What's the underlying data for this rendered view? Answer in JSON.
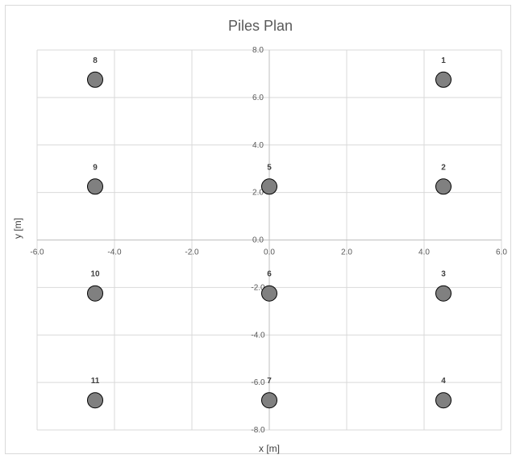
{
  "chart_data": {
    "type": "scatter",
    "title": "Piles Plan",
    "xlabel": "x [m]",
    "ylabel": "y [m]",
    "xlim": [
      -6,
      6
    ],
    "ylim": [
      -8,
      8
    ],
    "x_ticks": [
      -6,
      -4,
      -2,
      0,
      2,
      4,
      6
    ],
    "y_ticks": [
      -8,
      -6,
      -4,
      -2,
      0,
      2,
      4,
      6,
      8
    ],
    "grid": true,
    "point_color": "#808080",
    "points": [
      {
        "label": "1",
        "x": 4.5,
        "y": 6.75
      },
      {
        "label": "2",
        "x": 4.5,
        "y": 2.25
      },
      {
        "label": "3",
        "x": 4.5,
        "y": -2.25
      },
      {
        "label": "4",
        "x": 4.5,
        "y": -6.75
      },
      {
        "label": "5",
        "x": 0,
        "y": 2.25
      },
      {
        "label": "6",
        "x": 0,
        "y": -2.25
      },
      {
        "label": "7",
        "x": 0,
        "y": -6.75
      },
      {
        "label": "8",
        "x": -4.5,
        "y": 6.75
      },
      {
        "label": "9",
        "x": -4.5,
        "y": 2.25
      },
      {
        "label": "10",
        "x": -4.5,
        "y": -2.25
      },
      {
        "label": "11",
        "x": -4.5,
        "y": -6.75
      }
    ]
  }
}
